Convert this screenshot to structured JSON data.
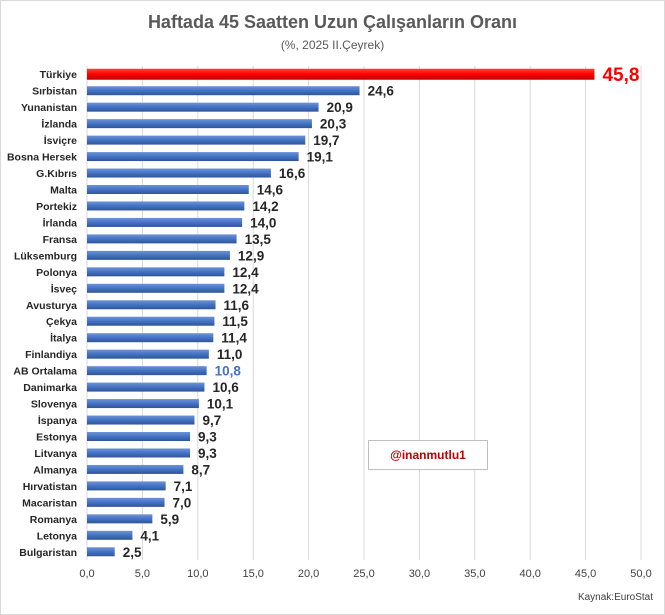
{
  "chart_data": {
    "type": "bar",
    "orientation": "horizontal",
    "title": "Haftada 45 Saatten Uzun Çalışanların Oranı",
    "subtitle": "(%, 2025 II.Çeyrek)",
    "categories": [
      "Türkiye",
      "Sırbistan",
      "Yunanistan",
      "İzlanda",
      "İsviçre",
      "Bosna Hersek",
      "G.Kıbrıs",
      "Malta",
      "Portekiz",
      "İrlanda",
      "Fransa",
      "Lüksemburg",
      "Polonya",
      "İsveç",
      "Avusturya",
      "Çekya",
      "İtalya",
      "Finlandiya",
      "AB Ortalama",
      "Danimarka",
      "Slovenya",
      "İspanya",
      "Estonya",
      "Litvanya",
      "Almanya",
      "Hırvatistan",
      "Macaristan",
      "Romanya",
      "Letonya",
      "Bulgaristan"
    ],
    "values": [
      45.8,
      24.6,
      20.9,
      20.3,
      19.7,
      19.1,
      16.6,
      14.6,
      14.2,
      14.0,
      13.5,
      12.9,
      12.4,
      12.4,
      11.6,
      11.5,
      11.4,
      11.0,
      10.8,
      10.6,
      10.1,
      9.7,
      9.3,
      9.3,
      8.7,
      7.1,
      7.0,
      5.9,
      4.1,
      2.5
    ],
    "value_labels": [
      "45,8",
      "24,6",
      "20,9",
      "20,3",
      "19,7",
      "19,1",
      "16,6",
      "14,6",
      "14,2",
      "14,0",
      "13,5",
      "12,9",
      "12,4",
      "12,4",
      "11,6",
      "11,5",
      "11,4",
      "11,0",
      "10,8",
      "10,6",
      "10,1",
      "9,7",
      "9,3",
      "9,3",
      "8,7",
      "7,1",
      "7,0",
      "5,9",
      "4,1",
      "2,5"
    ],
    "xlim": [
      0,
      50
    ],
    "x_ticks": [
      "0,0",
      "5,0",
      "10,0",
      "15,0",
      "20,0",
      "25,0",
      "30,0",
      "35,0",
      "40,0",
      "45,0",
      "50,0"
    ],
    "grid": true,
    "colors": {
      "default": "#4472c4",
      "highlight": "#ff0000",
      "average_label": "#4472c4",
      "label": "#262626"
    },
    "highlight_index": 0,
    "average_index": 18
  },
  "watermark": "@inanmutlu1",
  "source": "Kaynak:EuroStat"
}
